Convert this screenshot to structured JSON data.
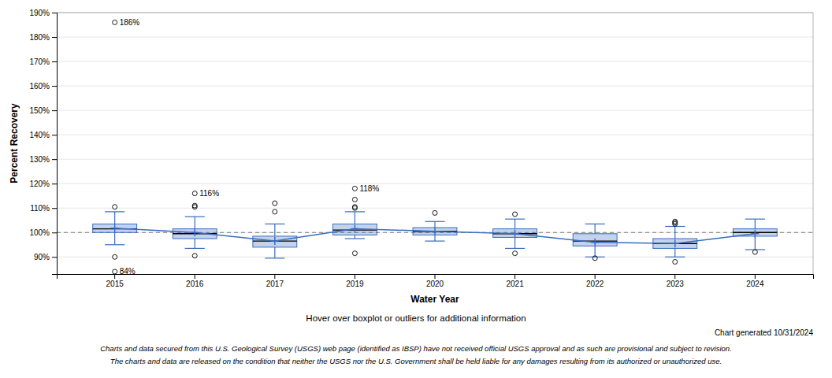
{
  "chart_data": {
    "type": "box",
    "xlabel": "Water Year",
    "ylabel": "Percent Recovery",
    "categories": [
      "2015",
      "2016",
      "2017",
      "2019",
      "2020",
      "2021",
      "2022",
      "2023",
      "2024"
    ],
    "boxes": [
      {
        "q1": 100.0,
        "median": 101.5,
        "q3": 103.5,
        "mean": 101.8,
        "whisker_low": 95.0,
        "whisker_high": 108.5
      },
      {
        "q1": 97.5,
        "median": 99.5,
        "q3": 101.5,
        "mean": 100.0,
        "whisker_low": 93.5,
        "whisker_high": 106.5
      },
      {
        "q1": 94.0,
        "median": 96.5,
        "q3": 98.5,
        "mean": 96.5,
        "whisker_low": 89.5,
        "whisker_high": 103.5
      },
      {
        "q1": 99.0,
        "median": 101.0,
        "q3": 103.5,
        "mean": 101.5,
        "whisker_low": 97.5,
        "whisker_high": 108.5
      },
      {
        "q1": 99.0,
        "median": 100.5,
        "q3": 102.0,
        "mean": 100.5,
        "whisker_low": 96.5,
        "whisker_high": 104.5
      },
      {
        "q1": 98.0,
        "median": 99.5,
        "q3": 101.5,
        "mean": 99.5,
        "whisker_low": 93.5,
        "whisker_high": 105.5
      },
      {
        "q1": 94.5,
        "median": 96.5,
        "q3": 99.5,
        "mean": 96.0,
        "whisker_low": 90.0,
        "whisker_high": 103.5
      },
      {
        "q1": 93.5,
        "median": 95.5,
        "q3": 97.5,
        "mean": 95.5,
        "whisker_low": 90.0,
        "whisker_high": 102.5
      },
      {
        "q1": 98.5,
        "median": 100.0,
        "q3": 101.5,
        "mean": 99.5,
        "whisker_low": 93.0,
        "whisker_high": 105.5
      }
    ],
    "outliers": [
      [
        90.0,
        110.5
      ],
      [
        90.5,
        110.5,
        111.0
      ],
      [
        108.5,
        112.0
      ],
      [
        91.5,
        110.0,
        110.5,
        113.5
      ],
      [
        108.0
      ],
      [
        91.5,
        107.5
      ],
      [
        89.5
      ],
      [
        88.0,
        103.5,
        104.0,
        104.5
      ],
      [
        92.0
      ]
    ],
    "labeled_outliers": [
      [
        186.0,
        84.0
      ],
      [
        116.0
      ],
      [],
      [
        118.0
      ],
      [],
      [],
      [],
      [],
      []
    ],
    "labeled_outlier_labels": [
      [
        "186%",
        "84%"
      ],
      [
        "116%"
      ],
      [],
      [
        "118%"
      ],
      [],
      [],
      [],
      [],
      []
    ],
    "mean_line": {
      "values": [
        101.8,
        100.0,
        96.5,
        101.5,
        100.5,
        99.5,
        96.0,
        95.5,
        99.5
      ]
    },
    "reference_line": 100.0,
    "color": "#3a6cbf",
    "ylim": [
      83,
      190
    ],
    "yticks": [
      {
        "value": 90,
        "label": "90%"
      },
      {
        "value": 100,
        "label": "100%"
      },
      {
        "value": 110,
        "label": "110%"
      },
      {
        "value": 120,
        "label": "120%"
      },
      {
        "value": 130,
        "label": "130%"
      },
      {
        "value": 140,
        "label": "140%"
      },
      {
        "value": 150,
        "label": "150%"
      },
      {
        "value": 160,
        "label": "160%"
      },
      {
        "value": 170,
        "label": "170%"
      },
      {
        "value": 180,
        "label": "180%"
      },
      {
        "value": 190,
        "label": "190%"
      }
    ],
    "grid": true,
    "notes": [
      "Hover over boxplot or outliers for additional information",
      "Chart generated 10/31/2024",
      "Charts and data secured from this U.S. Geological Survey (USGS) web page (identified as IBSP) have not received official USGS approval and as such are provisional and subject to revision.",
      "The charts and data are released on the condition that neither the USGS nor the U.S. Government shall be held liable for any damages resulting from its authorized or unauthorized use."
    ]
  }
}
